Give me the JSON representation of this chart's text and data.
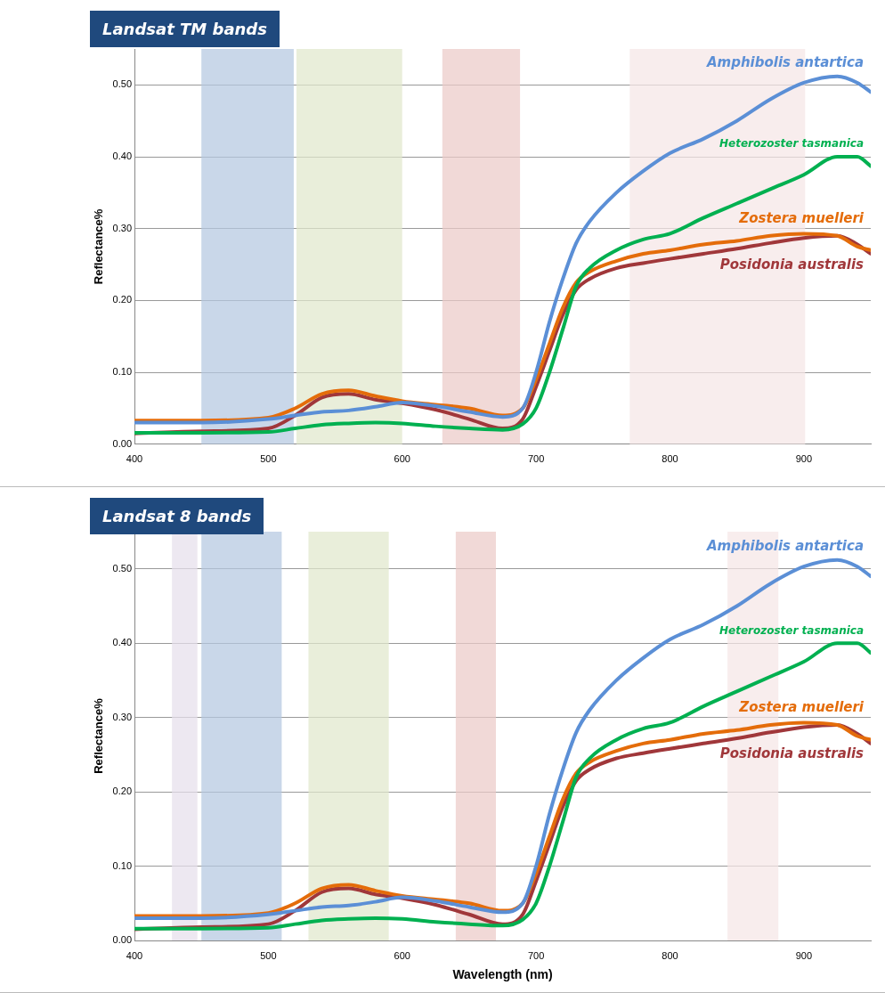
{
  "chart_data": [
    {
      "type": "line",
      "title": "Landsat TM bands",
      "ylabel": "Reflectance%",
      "xlim": [
        400,
        950
      ],
      "xticks": [
        400,
        500,
        600,
        700,
        800,
        900
      ],
      "ylim": [
        0,
        0.55
      ],
      "yticks": [
        {
          "value": 0,
          "label": "0.00"
        },
        {
          "value": 0.1,
          "label": "0.10"
        },
        {
          "value": 0.2,
          "label": "0.20"
        },
        {
          "value": 0.3,
          "label": "0.30"
        },
        {
          "value": 0.4,
          "label": "0.40"
        },
        {
          "value": 0.5,
          "label": "0.50"
        }
      ],
      "grid": "y",
      "legend": false,
      "marker": "none",
      "line_style": "solid",
      "bands": [
        {
          "axis": "x",
          "from": 450,
          "to": 519,
          "color": "#b4c8e0"
        },
        {
          "axis": "x",
          "from": 521,
          "to": 600,
          "color": "#e0e8cc"
        },
        {
          "axis": "x",
          "from": 630,
          "to": 688,
          "color": "#ebcac8"
        },
        {
          "axis": "x",
          "from": 770,
          "to": 901,
          "color": "#f5e6e6"
        }
      ],
      "x": [
        400,
        450,
        500,
        520,
        540,
        560,
        580,
        600,
        625,
        650,
        675,
        690,
        700,
        710,
        720,
        730,
        740,
        760,
        780,
        800,
        825,
        850,
        875,
        900,
        925,
        940,
        950
      ],
      "series": [
        {
          "name": "Amphibolis antartica",
          "color": "#5b8fd6",
          "values": [
            0.03,
            0.03,
            0.035,
            0.04,
            0.045,
            0.047,
            0.052,
            0.058,
            0.053,
            0.045,
            0.038,
            0.05,
            0.1,
            0.17,
            0.23,
            0.28,
            0.31,
            0.35,
            0.38,
            0.405,
            0.425,
            0.45,
            0.48,
            0.503,
            0.512,
            0.503,
            0.49
          ]
        },
        {
          "name": "Heterozoster tasmanica",
          "color": "#00b050",
          "values": [
            0.016,
            0.016,
            0.017,
            0.022,
            0.027,
            0.029,
            0.03,
            0.029,
            0.025,
            0.022,
            0.02,
            0.028,
            0.05,
            0.1,
            0.16,
            0.22,
            0.245,
            0.27,
            0.285,
            0.293,
            0.315,
            0.335,
            0.355,
            0.375,
            0.4,
            0.4,
            0.387
          ]
        },
        {
          "name": "Zostera muelleri",
          "color": "#e46c0a",
          "values": [
            0.033,
            0.033,
            0.037,
            0.05,
            0.07,
            0.075,
            0.067,
            0.06,
            0.055,
            0.05,
            0.04,
            0.05,
            0.09,
            0.14,
            0.19,
            0.225,
            0.24,
            0.255,
            0.265,
            0.27,
            0.278,
            0.283,
            0.29,
            0.293,
            0.29,
            0.275,
            0.27
          ]
        },
        {
          "name": "Posidonia australis",
          "color": "#a0373a",
          "values": [
            0.015,
            0.018,
            0.022,
            0.04,
            0.065,
            0.07,
            0.062,
            0.057,
            0.048,
            0.035,
            0.022,
            0.035,
            0.08,
            0.13,
            0.18,
            0.215,
            0.23,
            0.245,
            0.252,
            0.258,
            0.265,
            0.272,
            0.28,
            0.287,
            0.29,
            0.278,
            0.265
          ]
        }
      ]
    },
    {
      "type": "line",
      "title": "Landsat 8 bands",
      "xlabel": "Wavelength (nm)",
      "ylabel": "Reflectance%",
      "xlim": [
        400,
        950
      ],
      "xticks": [
        400,
        500,
        600,
        700,
        800,
        900
      ],
      "ylim": [
        0,
        0.55
      ],
      "yticks": [
        {
          "value": 0,
          "label": "0.00"
        },
        {
          "value": 0.1,
          "label": "0.10"
        },
        {
          "value": 0.2,
          "label": "0.20"
        },
        {
          "value": 0.3,
          "label": "0.30"
        },
        {
          "value": 0.4,
          "label": "0.40"
        },
        {
          "value": 0.5,
          "label": "0.50"
        }
      ],
      "grid": "y",
      "legend": false,
      "marker": "none",
      "line_style": "solid",
      "bands": [
        {
          "axis": "x",
          "from": 428,
          "to": 447,
          "color": "#e6dfec"
        },
        {
          "axis": "x",
          "from": 450,
          "to": 510,
          "color": "#b4c8e0"
        },
        {
          "axis": "x",
          "from": 530,
          "to": 590,
          "color": "#e0e8cc"
        },
        {
          "axis": "x",
          "from": 640,
          "to": 670,
          "color": "#ebcac8"
        },
        {
          "axis": "x",
          "from": 843,
          "to": 881,
          "color": "#f5e6e6"
        }
      ],
      "x": [
        400,
        450,
        500,
        520,
        540,
        560,
        580,
        600,
        625,
        650,
        675,
        690,
        700,
        710,
        720,
        730,
        740,
        760,
        780,
        800,
        825,
        850,
        875,
        900,
        925,
        940,
        950
      ],
      "series": [
        {
          "name": "Amphibolis antartica",
          "color": "#5b8fd6",
          "values": [
            0.03,
            0.03,
            0.035,
            0.04,
            0.045,
            0.047,
            0.052,
            0.058,
            0.053,
            0.045,
            0.038,
            0.05,
            0.1,
            0.17,
            0.23,
            0.28,
            0.31,
            0.35,
            0.38,
            0.405,
            0.425,
            0.45,
            0.48,
            0.503,
            0.512,
            0.503,
            0.49
          ]
        },
        {
          "name": "Heterozoster tasmanica",
          "color": "#00b050",
          "values": [
            0.016,
            0.016,
            0.017,
            0.022,
            0.027,
            0.029,
            0.03,
            0.029,
            0.025,
            0.022,
            0.02,
            0.028,
            0.05,
            0.1,
            0.16,
            0.22,
            0.245,
            0.27,
            0.285,
            0.293,
            0.315,
            0.335,
            0.355,
            0.375,
            0.4,
            0.4,
            0.387
          ]
        },
        {
          "name": "Zostera muelleri",
          "color": "#e46c0a",
          "values": [
            0.033,
            0.033,
            0.037,
            0.05,
            0.07,
            0.075,
            0.067,
            0.06,
            0.055,
            0.05,
            0.04,
            0.05,
            0.09,
            0.14,
            0.19,
            0.225,
            0.24,
            0.255,
            0.265,
            0.27,
            0.278,
            0.283,
            0.29,
            0.293,
            0.29,
            0.275,
            0.27
          ]
        },
        {
          "name": "Posidonia australis",
          "color": "#a0373a",
          "values": [
            0.015,
            0.018,
            0.022,
            0.04,
            0.065,
            0.07,
            0.062,
            0.057,
            0.048,
            0.035,
            0.022,
            0.035,
            0.08,
            0.13,
            0.18,
            0.215,
            0.23,
            0.245,
            0.252,
            0.258,
            0.265,
            0.272,
            0.28,
            0.287,
            0.29,
            0.278,
            0.265
          ]
        }
      ]
    }
  ]
}
